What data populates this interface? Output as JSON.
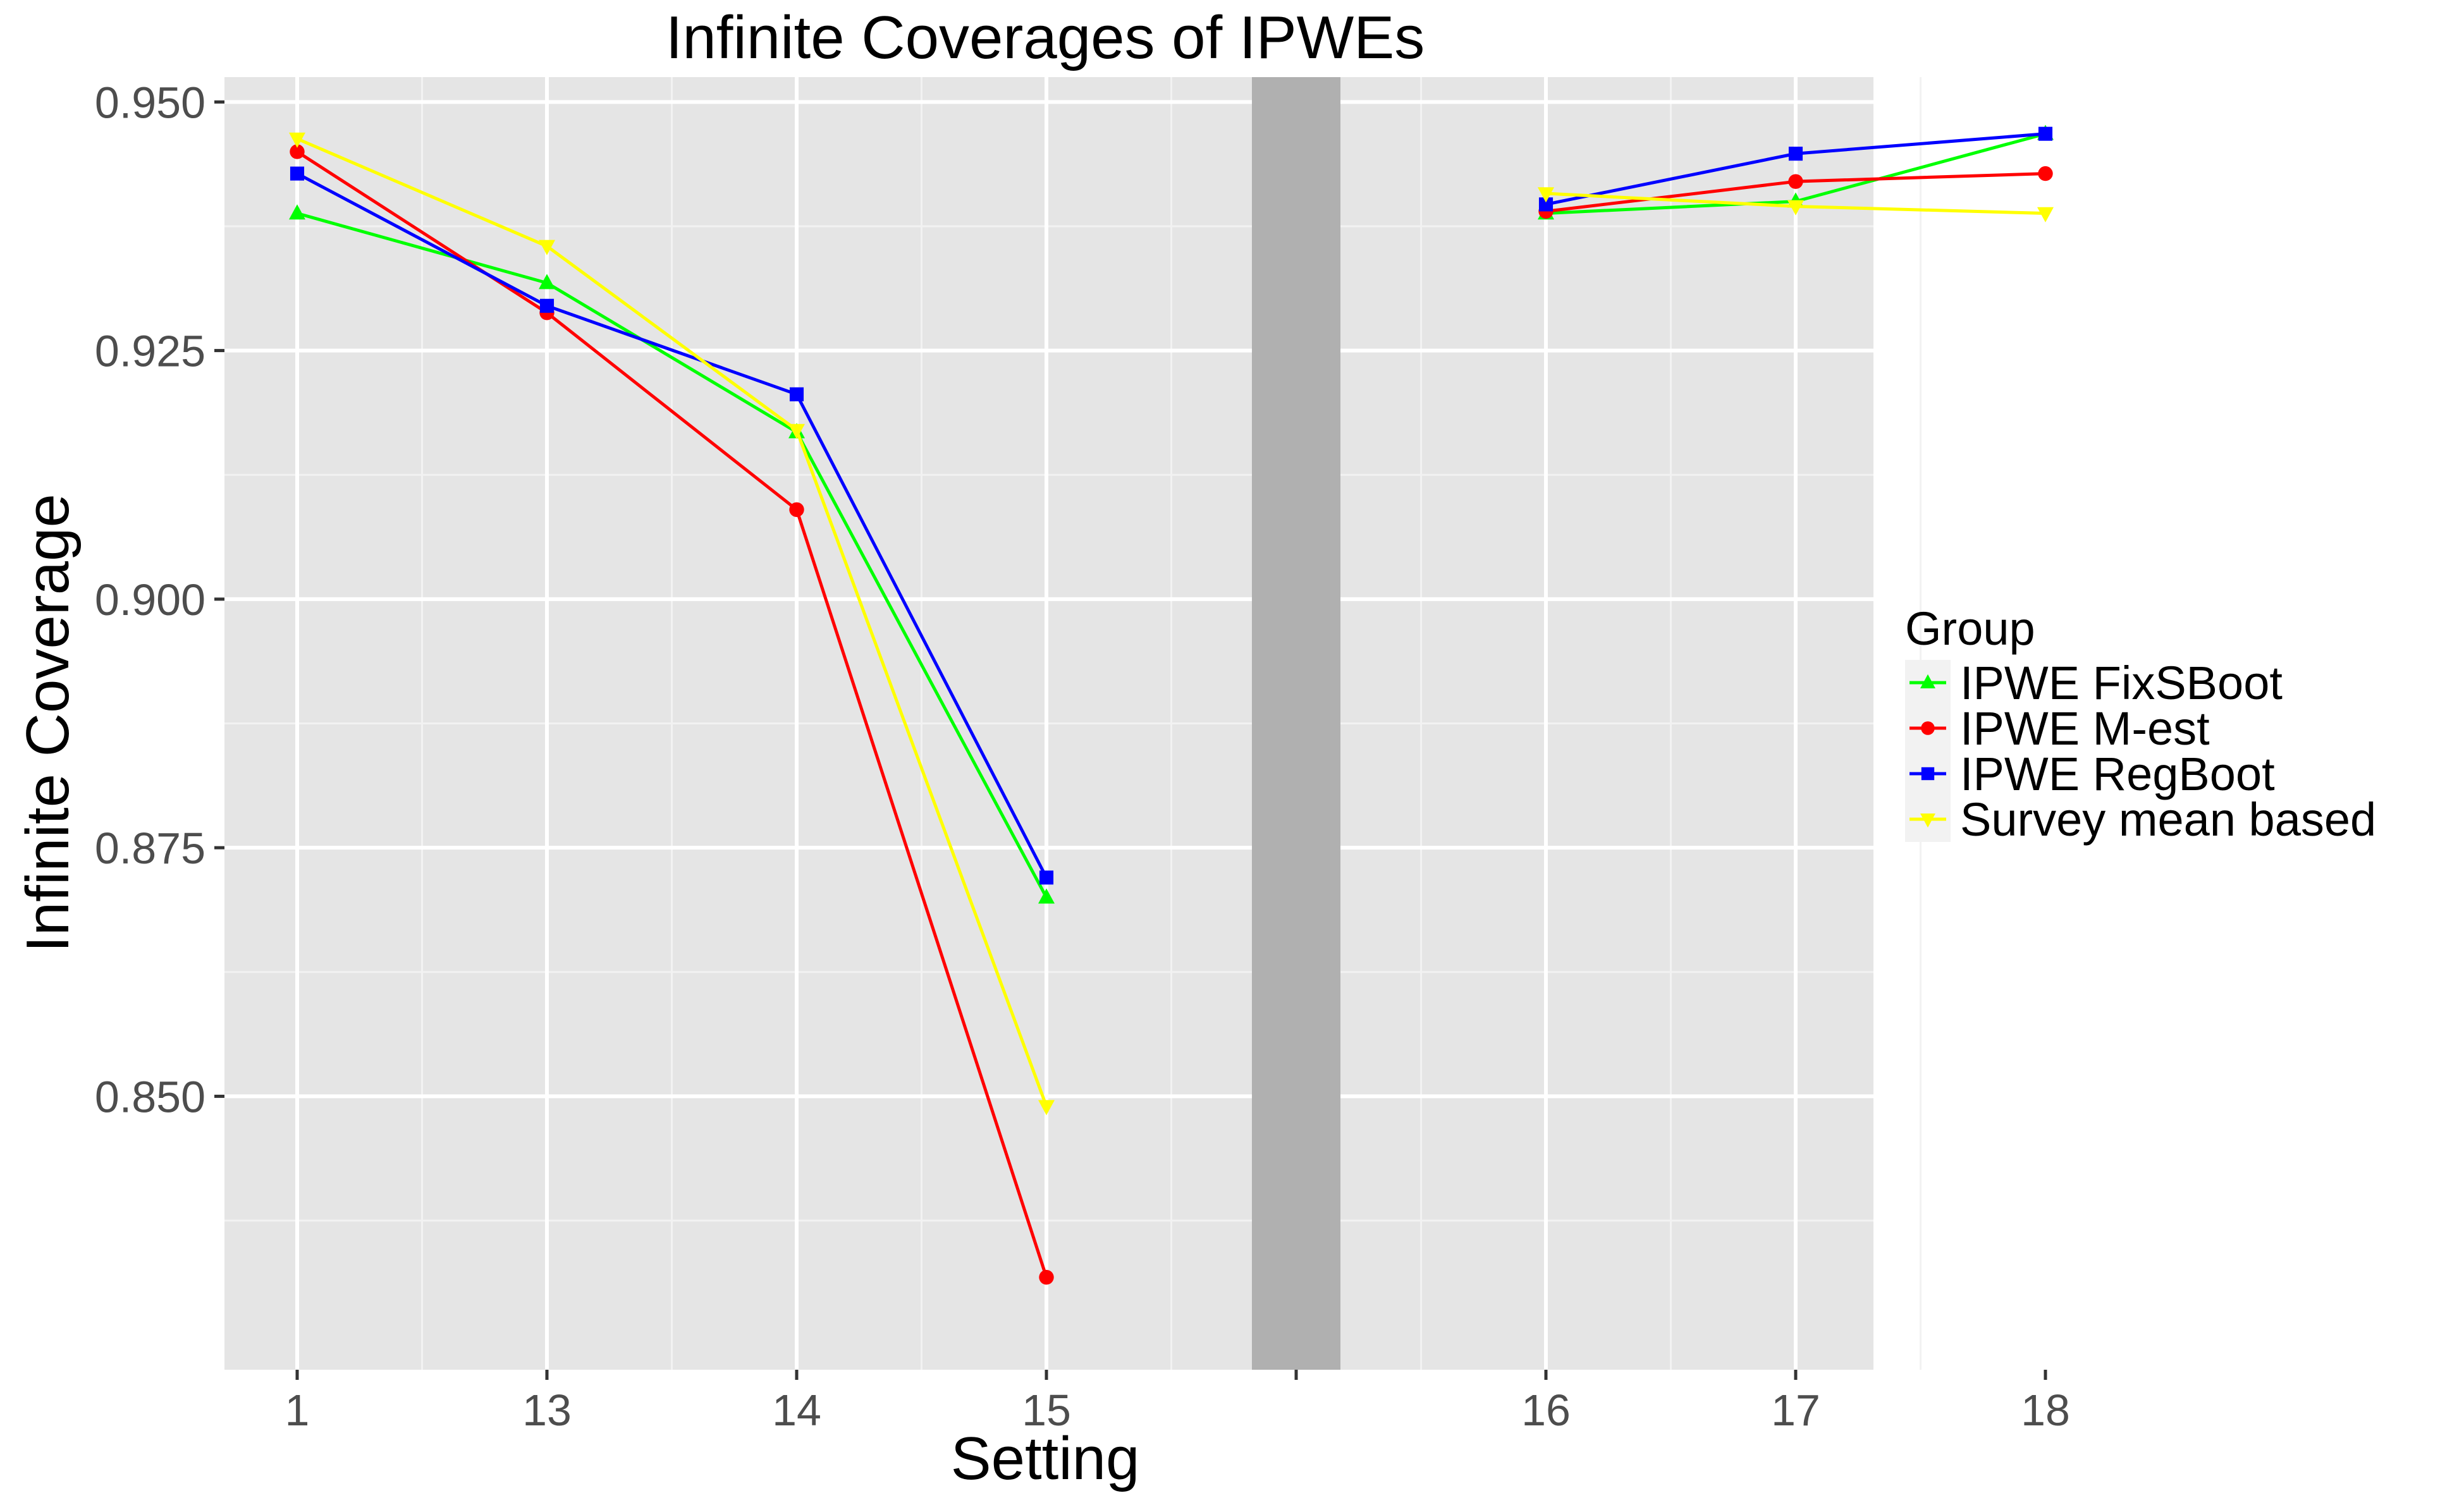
{
  "chart_data": {
    "type": "line",
    "title": "Infinite Coverages of IPWEs",
    "xlabel": "Setting",
    "ylabel": "Infinite Coverage",
    "categories": [
      "1",
      "13",
      "14",
      "15",
      "",
      "16",
      "17",
      "18"
    ],
    "y_ticks": [
      "0.850",
      "0.875",
      "0.900",
      "0.925",
      "0.950"
    ],
    "ylim": [
      0.8225,
      0.9525
    ],
    "grid": true,
    "shaded_gap_category_index": 4,
    "legend": {
      "title": "Group",
      "position": "right"
    },
    "series": [
      {
        "name": "IPWE FixSBoot",
        "color": "#00ff00",
        "marker": "triangle",
        "values": [
          0.9388,
          0.9318,
          0.9168,
          0.87,
          null,
          0.9388,
          0.94,
          0.9468
        ]
      },
      {
        "name": "IPWE M-est",
        "color": "#ff0000",
        "marker": "circle",
        "values": [
          0.945,
          0.9288,
          0.909,
          0.8318,
          null,
          0.939,
          0.942,
          0.9428
        ]
      },
      {
        "name": "IPWE RegBoot",
        "color": "#0000ff",
        "marker": "square",
        "values": [
          0.9428,
          0.9295,
          0.9206,
          0.872,
          null,
          0.9397,
          0.9448,
          0.9468
        ]
      },
      {
        "name": "Survey mean based",
        "color": "#ffff00",
        "marker": "triangle-down",
        "values": [
          0.9463,
          0.9355,
          0.917,
          0.849,
          null,
          0.9408,
          0.9395,
          0.9388
        ]
      }
    ]
  }
}
